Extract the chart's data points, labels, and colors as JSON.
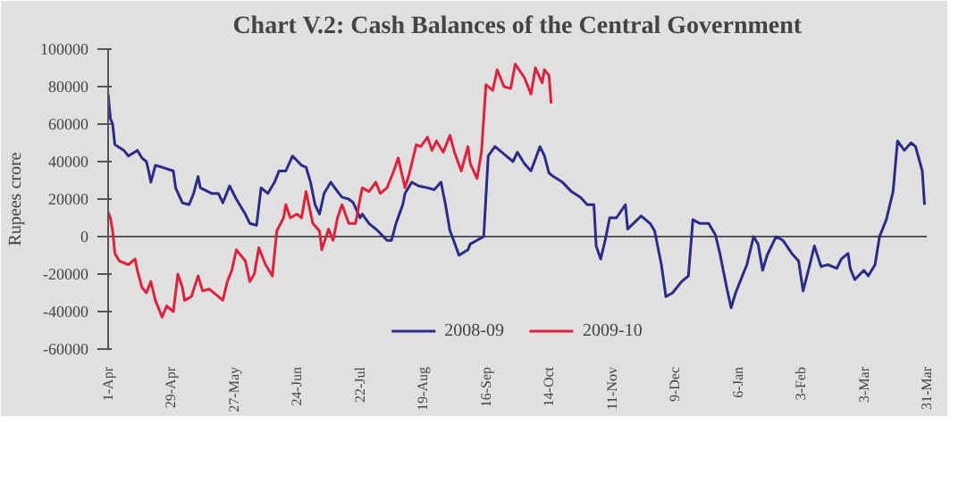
{
  "chart_data": {
    "type": "line",
    "title": "Chart V.2: Cash Balances of the Central Government",
    "ylabel": "Rupees crore",
    "xlim": [
      "2008-04-01",
      "2009-03-31"
    ],
    "xticks": [
      {
        "value": "2008-04-01",
        "label": "1-Apr"
      },
      {
        "value": "2008-04-29",
        "label": "29-Apr"
      },
      {
        "value": "2008-05-27",
        "label": "27-May"
      },
      {
        "value": "2008-06-24",
        "label": "24-Jun"
      },
      {
        "value": "2008-07-22",
        "label": "22-Jul"
      },
      {
        "value": "2008-08-19",
        "label": "19-Aug"
      },
      {
        "value": "2008-09-16",
        "label": "16-Sep"
      },
      {
        "value": "2008-10-14",
        "label": "14-Oct"
      },
      {
        "value": "2008-11-11",
        "label": "11-Nov"
      },
      {
        "value": "2008-12-09",
        "label": "9-Dec"
      },
      {
        "value": "2009-01-06",
        "label": "6-Jan"
      },
      {
        "value": "2009-02-03",
        "label": "3-Feb"
      },
      {
        "value": "2009-03-03",
        "label": "3-Mar"
      },
      {
        "value": "2009-03-31",
        "label": "31-Mar"
      }
    ],
    "ylim": [
      -60000,
      100000
    ],
    "yticks": [
      -60000,
      -40000,
      -20000,
      0,
      20000,
      40000,
      60000,
      80000,
      100000
    ],
    "legend": "bottom",
    "line_style": "solid",
    "ref_lines": [
      {
        "axis": "y",
        "value": 0
      }
    ],
    "series": [
      {
        "name": "2008-09",
        "color": "#2b2b8a",
        "x": [
          "2008-04-01",
          "2008-04-02",
          "2008-04-03",
          "2008-04-04",
          "2008-04-08",
          "2008-04-10",
          "2008-04-14",
          "2008-04-16",
          "2008-04-18",
          "2008-04-19",
          "2008-04-20",
          "2008-04-22",
          "2008-04-25",
          "2008-04-30",
          "2008-05-01",
          "2008-05-04",
          "2008-05-07",
          "2008-05-09",
          "2008-05-11",
          "2008-05-12",
          "2008-05-17",
          "2008-05-20",
          "2008-05-22",
          "2008-05-25",
          "2008-05-28",
          "2008-05-29",
          "2008-06-01",
          "2008-06-03",
          "2008-06-06",
          "2008-06-08",
          "2008-06-11",
          "2008-06-14",
          "2008-06-16",
          "2008-06-19",
          "2008-06-22",
          "2008-06-26",
          "2008-06-28",
          "2008-06-30",
          "2008-07-01",
          "2008-07-02",
          "2008-07-04",
          "2008-07-06",
          "2008-07-09",
          "2008-07-12",
          "2008-07-14",
          "2008-07-17",
          "2008-07-19",
          "2008-07-22",
          "2008-07-23",
          "2008-07-26",
          "2008-07-30",
          "2008-08-03",
          "2008-08-05",
          "2008-08-07",
          "2008-08-10",
          "2008-08-11",
          "2008-08-14",
          "2008-08-17",
          "2008-08-21",
          "2008-08-24",
          "2008-08-27",
          "2008-08-29",
          "2008-08-31",
          "2008-09-01",
          "2008-09-04",
          "2008-09-08",
          "2008-09-09",
          "2008-09-15",
          "2008-09-17",
          "2008-09-20",
          "2008-09-25",
          "2008-09-28",
          "2008-09-30",
          "2008-10-03",
          "2008-10-06",
          "2008-10-10",
          "2008-10-12",
          "2008-10-14",
          "2008-10-16",
          "2008-10-20",
          "2008-10-24",
          "2008-10-28",
          "2008-10-31",
          "2008-11-03",
          "2008-11-04",
          "2008-11-06",
          "2008-11-08",
          "2008-11-10",
          "2008-11-13",
          "2008-11-17",
          "2008-11-18",
          "2008-11-24",
          "2008-11-28",
          "2008-11-30",
          "2008-12-03",
          "2008-12-05",
          "2008-12-08",
          "2008-12-12",
          "2008-12-15",
          "2008-12-17",
          "2008-12-20",
          "2008-12-24",
          "2008-12-27",
          "2008-12-29",
          "2009-01-01",
          "2009-01-03",
          "2009-01-05",
          "2009-01-07",
          "2009-01-10",
          "2009-01-13",
          "2009-01-15",
          "2009-01-17",
          "2009-01-19",
          "2009-01-23",
          "2009-01-26",
          "2009-01-30",
          "2009-02-02",
          "2009-02-04",
          "2009-02-07",
          "2009-02-09",
          "2009-02-12",
          "2009-02-15",
          "2009-02-19",
          "2009-02-21",
          "2009-02-24",
          "2009-02-25",
          "2009-02-27",
          "2009-03-03",
          "2009-03-05",
          "2009-03-08",
          "2009-03-10",
          "2009-03-13",
          "2009-03-16",
          "2009-03-18",
          "2009-03-21",
          "2009-03-24",
          "2009-03-26",
          "2009-03-29",
          "2009-03-30"
        ],
        "values": [
          76000,
          63000,
          60000,
          49000,
          46000,
          43000,
          46000,
          42000,
          40000,
          35000,
          29000,
          38000,
          37000,
          35000,
          26000,
          18000,
          17000,
          23000,
          32000,
          26000,
          23000,
          23000,
          18000,
          27000,
          20000,
          18000,
          12000,
          7000,
          6000,
          26000,
          23000,
          29000,
          35000,
          35000,
          43000,
          38000,
          37000,
          29000,
          23000,
          17000,
          12000,
          23000,
          29000,
          24000,
          21000,
          20000,
          18000,
          10000,
          12000,
          7000,
          3000,
          -2000,
          -2000,
          7000,
          17000,
          23000,
          29000,
          27000,
          26000,
          25000,
          29000,
          17000,
          3000,
          0,
          -10000,
          -7000,
          -4000,
          0,
          43000,
          48000,
          43000,
          40000,
          45000,
          39000,
          35000,
          48000,
          43000,
          34000,
          32000,
          29000,
          24000,
          21000,
          17000,
          17000,
          -5000,
          -12000,
          -2000,
          10000,
          10000,
          17000,
          4000,
          11000,
          7000,
          3000,
          -15000,
          -32000,
          -30000,
          -24000,
          -21000,
          9000,
          7000,
          7000,
          1000,
          -9000,
          -27000,
          -38000,
          -30000,
          -24000,
          -15000,
          0,
          -4000,
          -18000,
          -10000,
          0,
          -2000,
          -9000,
          -13000,
          -29000,
          -15000,
          -5000,
          -16000,
          -15000,
          -17000,
          -12000,
          -9000,
          -17000,
          -23000,
          -18000,
          -21000,
          -15000,
          0,
          9000,
          24000,
          51000,
          46000,
          50000,
          48000,
          35000,
          17000
        ]
      },
      {
        "name": "2009-10",
        "color": "#e0203c",
        "x": [
          "2008-04-01",
          "2008-04-02",
          "2008-04-03",
          "2008-04-04",
          "2008-04-06",
          "2008-04-10",
          "2008-04-13",
          "2008-04-14",
          "2008-04-16",
          "2008-04-18",
          "2008-04-20",
          "2008-04-22",
          "2008-04-25",
          "2008-04-27",
          "2008-04-30",
          "2008-05-02",
          "2008-05-04",
          "2008-05-05",
          "2008-05-08",
          "2008-05-11",
          "2008-05-13",
          "2008-05-16",
          "2008-05-20",
          "2008-05-22",
          "2008-05-24",
          "2008-05-26",
          "2008-05-28",
          "2008-05-30",
          "2008-06-01",
          "2008-06-03",
          "2008-06-05",
          "2008-06-07",
          "2008-06-10",
          "2008-06-13",
          "2008-06-15",
          "2008-06-18",
          "2008-06-19",
          "2008-06-21",
          "2008-06-24",
          "2008-06-26",
          "2008-06-28",
          "2008-07-01",
          "2008-07-04",
          "2008-07-05",
          "2008-07-08",
          "2008-07-10",
          "2008-07-12",
          "2008-07-14",
          "2008-07-17",
          "2008-07-20",
          "2008-07-22",
          "2008-07-23",
          "2008-07-26",
          "2008-07-29",
          "2008-07-31",
          "2008-08-03",
          "2008-08-06",
          "2008-08-08",
          "2008-08-11",
          "2008-08-13",
          "2008-08-16",
          "2008-08-18",
          "2008-08-21",
          "2008-08-23",
          "2008-08-25",
          "2008-08-28",
          "2008-08-31",
          "2008-09-02",
          "2008-09-05",
          "2008-09-08",
          "2008-09-09",
          "2008-09-12",
          "2008-09-14",
          "2008-09-16",
          "2008-09-19",
          "2008-09-21",
          "2008-09-24",
          "2008-09-27",
          "2008-09-29",
          "2008-10-03",
          "2008-10-06",
          "2008-10-08",
          "2008-10-11",
          "2008-10-12",
          "2008-10-14",
          "2008-10-15"
        ],
        "values": [
          13000,
          10000,
          3000,
          -9000,
          -13000,
          -15000,
          -12000,
          -18000,
          -27000,
          -30000,
          -24000,
          -34000,
          -43000,
          -37000,
          -40000,
          -20000,
          -27000,
          -34000,
          -32000,
          -21000,
          -29000,
          -28000,
          -32000,
          -34000,
          -24000,
          -18000,
          -7000,
          -10000,
          -13000,
          -24000,
          -20000,
          -6000,
          -15000,
          -21000,
          3000,
          10000,
          17000,
          10000,
          12000,
          10000,
          24000,
          7000,
          3000,
          -7000,
          4000,
          -2000,
          10000,
          17000,
          7000,
          7000,
          20000,
          26000,
          24000,
          29000,
          23000,
          26000,
          35000,
          42000,
          26000,
          34000,
          49000,
          48000,
          53000,
          46000,
          51000,
          45000,
          54000,
          45000,
          35000,
          48000,
          39000,
          31000,
          45000,
          81000,
          78000,
          89000,
          80000,
          79000,
          92000,
          85000,
          76000,
          90000,
          82000,
          89000,
          86000,
          71000
        ]
      }
    ]
  }
}
